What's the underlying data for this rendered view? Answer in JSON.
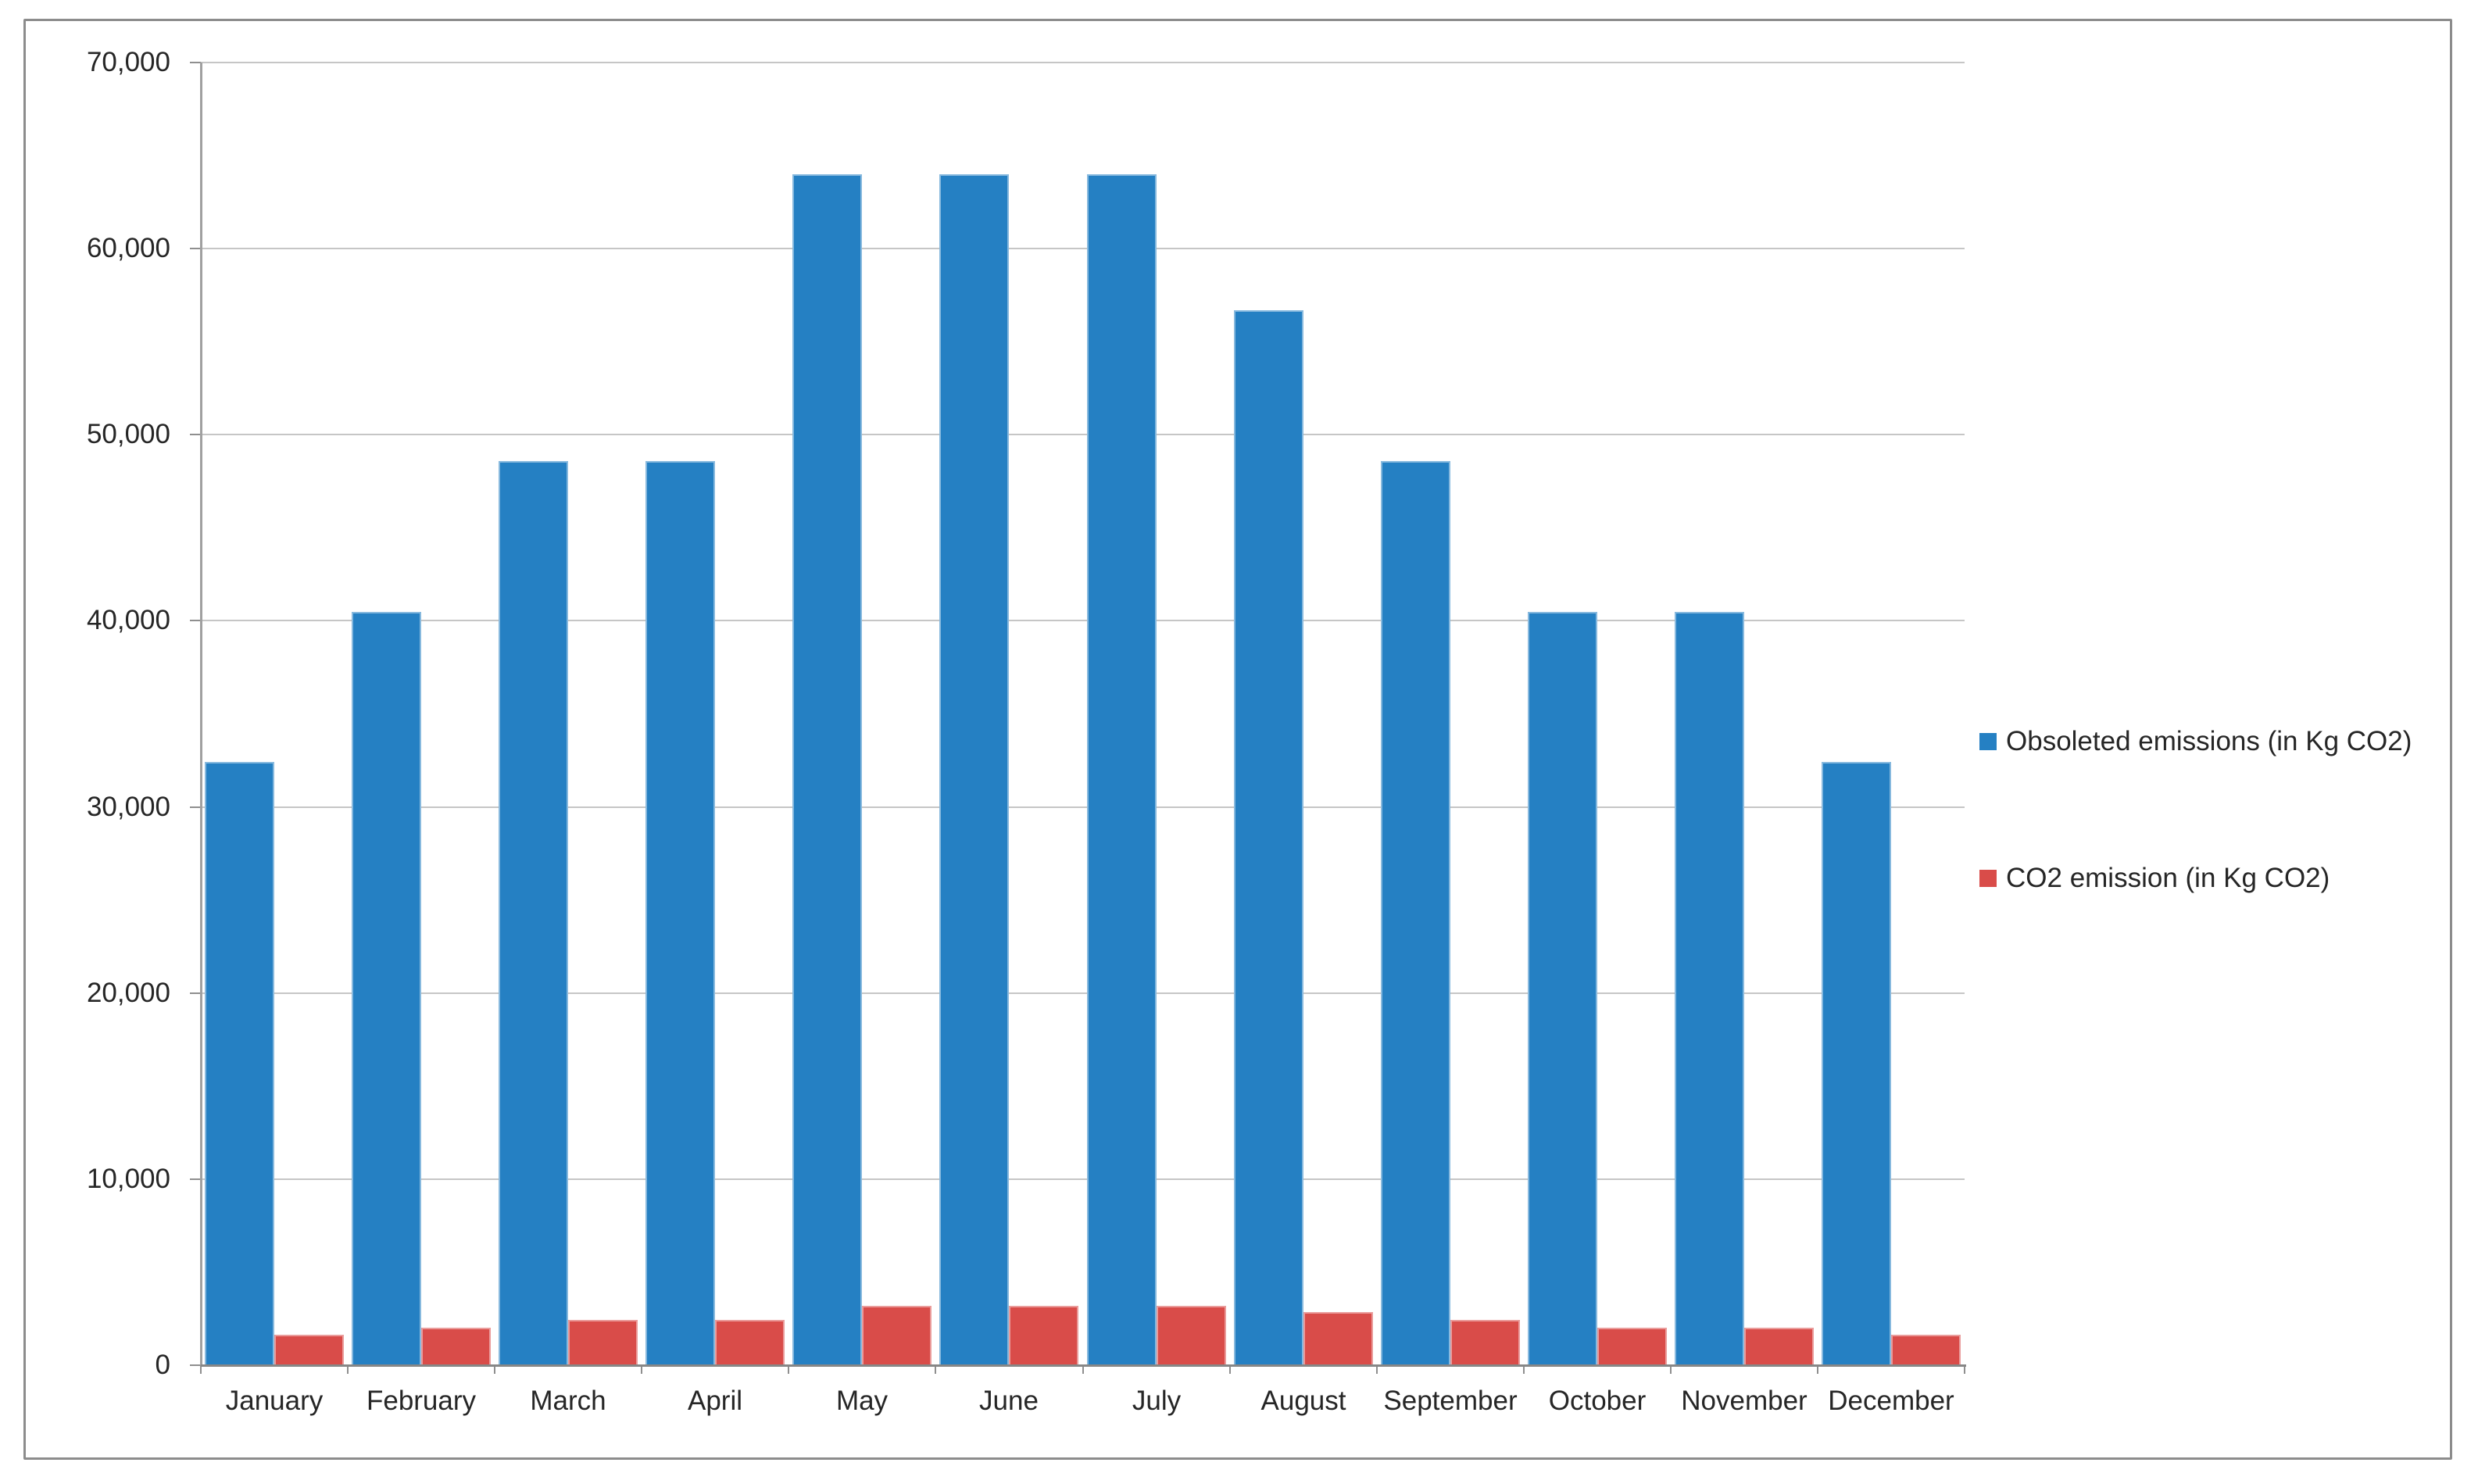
{
  "chart_data": {
    "type": "bar",
    "categories": [
      "January",
      "February",
      "March",
      "April",
      "May",
      "June",
      "July",
      "August",
      "September",
      "October",
      "November",
      "December"
    ],
    "series": [
      {
        "name": "Obsoleted emissions (in Kg CO2)",
        "color": "#2580c3",
        "values": [
          32400,
          40500,
          48600,
          48600,
          64000,
          64000,
          64000,
          56700,
          48600,
          40500,
          40500,
          32400
        ]
      },
      {
        "name": "CO2 emission (in Kg CO2)",
        "color": "#d94c49",
        "values": [
          1620,
          2025,
          2430,
          2430,
          3200,
          3200,
          3200,
          2835,
          2430,
          2025,
          2025,
          1620
        ]
      }
    ],
    "ylim": [
      0,
      70000
    ],
    "ytick_step": 10000,
    "y_tick_labels": [
      "0",
      "10,000",
      "20,000",
      "30,000",
      "40,000",
      "50,000",
      "60,000",
      "70,000"
    ],
    "grid": true,
    "legend_position": "right"
  }
}
